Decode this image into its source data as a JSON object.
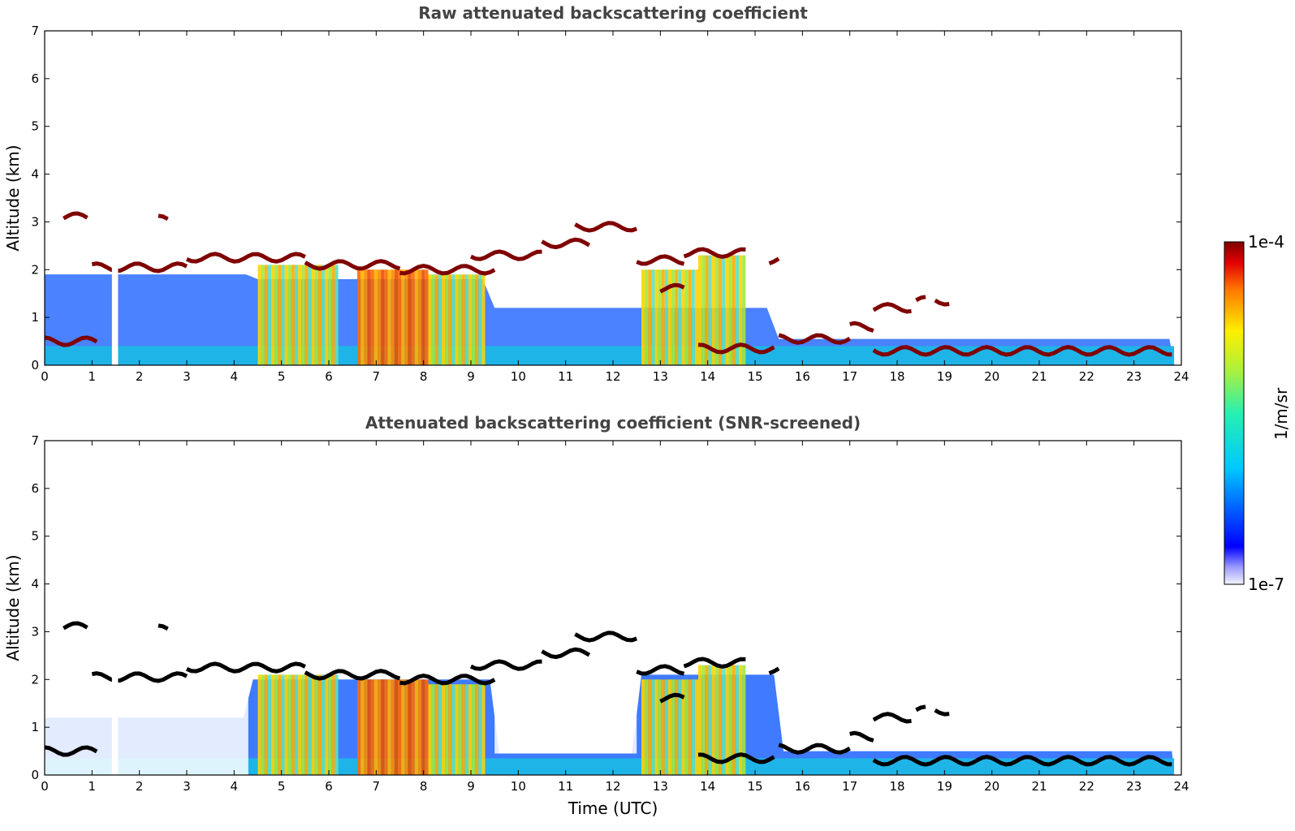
{
  "chart_data": [
    {
      "type": "heatmap",
      "title": "Raw attenuated backscattering coefficient",
      "ylabel": "Altitude (km)",
      "xlabel": "",
      "xlim": [
        0,
        24
      ],
      "ylim": [
        0,
        7
      ],
      "x_ticks": [
        "0",
        "1",
        "2",
        "3",
        "4",
        "5",
        "6",
        "7",
        "8",
        "9",
        "10",
        "11",
        "12",
        "13",
        "14",
        "15",
        "16",
        "17",
        "18",
        "19",
        "20",
        "21",
        "22",
        "23",
        "24"
      ],
      "y_ticks": [
        "0",
        "1",
        "2",
        "3",
        "4",
        "5",
        "6",
        "7"
      ],
      "colormap": "jet",
      "cloud_layers": [
        {
          "start": 0.0,
          "end": 1.1,
          "altitude": 0.5
        },
        {
          "start": 0.4,
          "end": 0.9,
          "altitude": 3.1
        },
        {
          "start": 1.0,
          "end": 3.0,
          "altitude": 2.05
        },
        {
          "start": 2.4,
          "end": 2.6,
          "altitude": 3.05
        },
        {
          "start": 3.0,
          "end": 5.5,
          "altitude": 2.25
        },
        {
          "start": 5.5,
          "end": 7.5,
          "altitude": 2.1
        },
        {
          "start": 7.5,
          "end": 9.5,
          "altitude": 2.0
        },
        {
          "start": 9.0,
          "end": 10.5,
          "altitude": 2.3
        },
        {
          "start": 10.5,
          "end": 11.5,
          "altitude": 2.55
        },
        {
          "start": 11.2,
          "end": 12.5,
          "altitude": 2.9
        },
        {
          "start": 12.5,
          "end": 13.5,
          "altitude": 2.2
        },
        {
          "start": 13.0,
          "end": 13.5,
          "altitude": 1.6
        },
        {
          "start": 13.5,
          "end": 14.8,
          "altitude": 2.35
        },
        {
          "start": 13.8,
          "end": 15.4,
          "altitude": 0.35
        },
        {
          "start": 15.3,
          "end": 15.5,
          "altitude": 2.2
        },
        {
          "start": 15.5,
          "end": 17.0,
          "altitude": 0.55
        },
        {
          "start": 17.0,
          "end": 17.5,
          "altitude": 0.8
        },
        {
          "start": 17.5,
          "end": 18.3,
          "altitude": 1.2
        },
        {
          "start": 18.4,
          "end": 18.6,
          "altitude": 1.35
        },
        {
          "start": 18.8,
          "end": 19.1,
          "altitude": 1.35
        },
        {
          "start": 17.5,
          "end": 23.8,
          "altitude": 0.3
        }
      ],
      "aerosol_plumes": [
        {
          "start": 4.5,
          "end": 6.2,
          "top": 2.1
        },
        {
          "start": 6.6,
          "end": 8.1,
          "top": 2.0
        },
        {
          "start": 8.1,
          "end": 9.3,
          "top": 1.9
        },
        {
          "start": 12.6,
          "end": 13.8,
          "top": 2.0
        },
        {
          "start": 13.8,
          "end": 14.8,
          "top": 2.3
        }
      ],
      "gap": {
        "start": 1.42,
        "end": 1.55
      },
      "data_end": 23.85
    },
    {
      "type": "heatmap",
      "title": "Attenuated backscattering coefficient (SNR-screened)",
      "ylabel": "Altitude (km)",
      "xlabel": "Time (UTC)",
      "xlim": [
        0,
        24
      ],
      "ylim": [
        0,
        7
      ],
      "x_ticks": [
        "0",
        "1",
        "2",
        "3",
        "4",
        "5",
        "6",
        "7",
        "8",
        "9",
        "10",
        "11",
        "12",
        "13",
        "14",
        "15",
        "16",
        "17",
        "18",
        "19",
        "20",
        "21",
        "22",
        "23",
        "24"
      ],
      "y_ticks": [
        "0",
        "1",
        "2",
        "3",
        "4",
        "5",
        "6",
        "7"
      ],
      "colormap": "jet",
      "screened_regions": [
        {
          "start": 0.0,
          "end": 4.3,
          "from": 0.0,
          "to": 1.9
        },
        {
          "start": 9.5,
          "end": 12.5,
          "from": 0.45,
          "to": 2.2
        }
      ],
      "data_end": 23.85
    }
  ],
  "colorbar": {
    "max_label": "1e-4",
    "min_label": "1e-7",
    "label": "1/m/sr"
  },
  "colors": {
    "clear_sky": "#ffffff",
    "cloud_raw": "#7f0000",
    "cloud_screened": "#000000",
    "axis": "#000000",
    "title": "#444444"
  }
}
